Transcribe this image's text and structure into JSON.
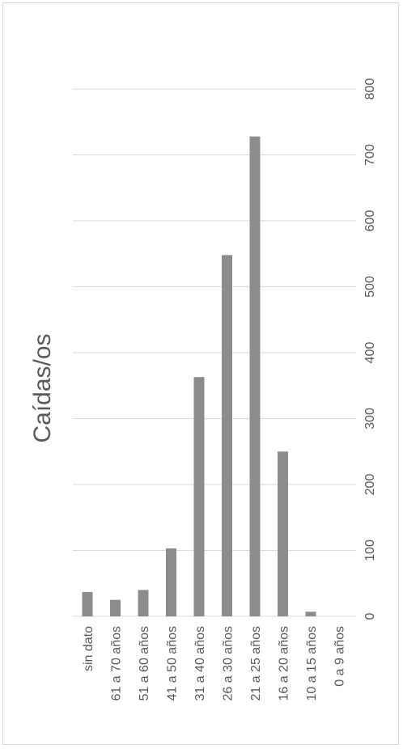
{
  "chart_data": {
    "type": "bar",
    "orientation": "vertical-rotated",
    "title": "Caídas/os",
    "categories": [
      "sin dato",
      "61 a 70 años",
      "51 a 60 años",
      "41 a 50 años",
      "31 a 40 años",
      "26 a 30 años",
      "21 a 25 años",
      "16 a 20 años",
      "10 a 15 años",
      "0 a 9 años"
    ],
    "values": [
      37,
      25,
      40,
      103,
      363,
      548,
      728,
      250,
      7,
      0
    ],
    "ticks": [
      0,
      100,
      200,
      300,
      400,
      500,
      600,
      700,
      800
    ],
    "ylim": [
      0,
      800
    ],
    "grid": true,
    "legend": "none",
    "colors": {
      "bar": "#8c8c8c",
      "grid": "#d9d9d9",
      "text": "#595959"
    }
  }
}
